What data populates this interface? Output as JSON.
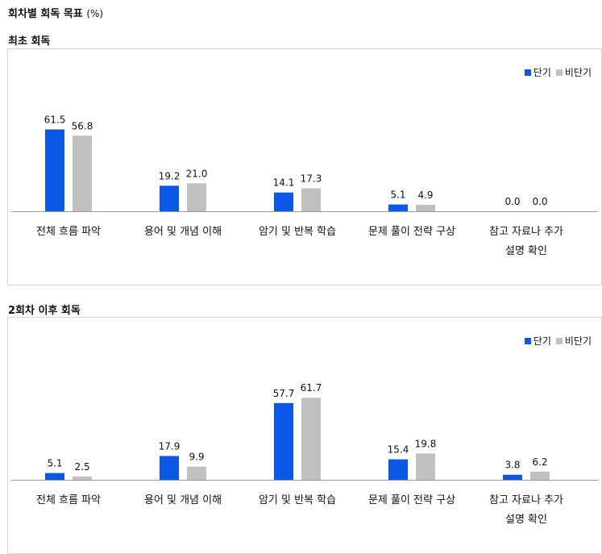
{
  "page": {
    "title": "회차별 회독 목표",
    "unit": "(%)"
  },
  "colors": {
    "short": "#0b57e6",
    "long": "#c0c0c0"
  },
  "chart_data": [
    {
      "type": "bar",
      "title": "최초 회독",
      "categories": [
        [
          "전체 흐름 파악"
        ],
        [
          "용어 및 개념 이해"
        ],
        [
          "암기 및 반복 학습"
        ],
        [
          "문제 풀이 전략 구상"
        ],
        [
          "참고 자료나 추가",
          "설명  확인"
        ]
      ],
      "series": [
        {
          "name": "단기",
          "values": [
            61.5,
            19.2,
            14.1,
            5.1,
            0.0
          ]
        },
        {
          "name": "비단기",
          "values": [
            56.8,
            21.0,
            17.3,
            4.9,
            0.0
          ]
        }
      ],
      "ylim": [
        0,
        70
      ],
      "legend": "top-right",
      "grid": false
    },
    {
      "type": "bar",
      "title": "2회차 이후  회독",
      "categories": [
        [
          "전체 흐름 파악"
        ],
        [
          "용어 및 개념 이해"
        ],
        [
          "암기 및 반복 학습"
        ],
        [
          "문제 풀이 전략 구상"
        ],
        [
          "참고 자료나 추가",
          "설명  확인"
        ]
      ],
      "series": [
        {
          "name": "단기",
          "values": [
            5.1,
            17.9,
            57.7,
            15.4,
            3.8
          ]
        },
        {
          "name": "비단기",
          "values": [
            2.5,
            9.9,
            61.7,
            19.8,
            6.2
          ]
        }
      ],
      "ylim": [
        0,
        70
      ],
      "legend": "top-right",
      "grid": false
    }
  ]
}
